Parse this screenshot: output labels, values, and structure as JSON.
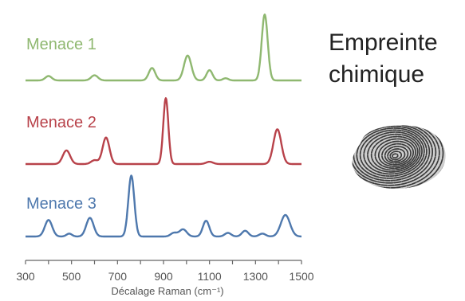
{
  "side_title": {
    "line1": "Empreinte",
    "line2": "chimique"
  },
  "icons": {
    "fingerprint": "fingerprint-icon"
  },
  "colors": {
    "menace1": "#8fb870",
    "menace2": "#b8424a",
    "menace3": "#4e78ad",
    "axis": "#666666",
    "fingerprint": "#3a3a3a"
  },
  "chart_data": {
    "type": "line",
    "title": "",
    "xlabel": "Décalage Raman (cm⁻¹)",
    "ylabel": "",
    "xlim": [
      300,
      1500
    ],
    "x_ticks": [
      300,
      500,
      700,
      900,
      1100,
      1300,
      1500
    ],
    "x_minor_step": 100,
    "stacked_offsets": true,
    "grid": false,
    "series": [
      {
        "name": "Menace 1",
        "color": "#8fb870",
        "peaks": [
          {
            "x": 400,
            "height": 0.06,
            "width": 14
          },
          {
            "x": 600,
            "height": 0.07,
            "width": 15
          },
          {
            "x": 850,
            "height": 0.17,
            "width": 14
          },
          {
            "x": 1005,
            "height": 0.34,
            "width": 16
          },
          {
            "x": 1100,
            "height": 0.14,
            "width": 13
          },
          {
            "x": 1170,
            "height": 0.03,
            "width": 12
          },
          {
            "x": 1340,
            "height": 0.9,
            "width": 13
          }
        ]
      },
      {
        "name": "Menace 2",
        "color": "#b8424a",
        "peaks": [
          {
            "x": 478,
            "height": 0.18,
            "width": 16
          },
          {
            "x": 600,
            "height": 0.05,
            "width": 15
          },
          {
            "x": 650,
            "height": 0.35,
            "width": 15
          },
          {
            "x": 910,
            "height": 0.87,
            "width": 11
          },
          {
            "x": 1100,
            "height": 0.03,
            "width": 15
          },
          {
            "x": 1395,
            "height": 0.46,
            "width": 17
          }
        ]
      },
      {
        "name": "Menace 3",
        "color": "#4e78ad",
        "peaks": [
          {
            "x": 400,
            "height": 0.23,
            "width": 16
          },
          {
            "x": 490,
            "height": 0.04,
            "width": 12
          },
          {
            "x": 580,
            "height": 0.26,
            "width": 16
          },
          {
            "x": 760,
            "height": 0.85,
            "width": 13
          },
          {
            "x": 945,
            "height": 0.05,
            "width": 14
          },
          {
            "x": 985,
            "height": 0.1,
            "width": 16
          },
          {
            "x": 1085,
            "height": 0.22,
            "width": 14
          },
          {
            "x": 1180,
            "height": 0.05,
            "width": 14
          },
          {
            "x": 1255,
            "height": 0.08,
            "width": 14
          },
          {
            "x": 1330,
            "height": 0.04,
            "width": 14
          },
          {
            "x": 1430,
            "height": 0.3,
            "width": 20
          }
        ]
      }
    ]
  }
}
